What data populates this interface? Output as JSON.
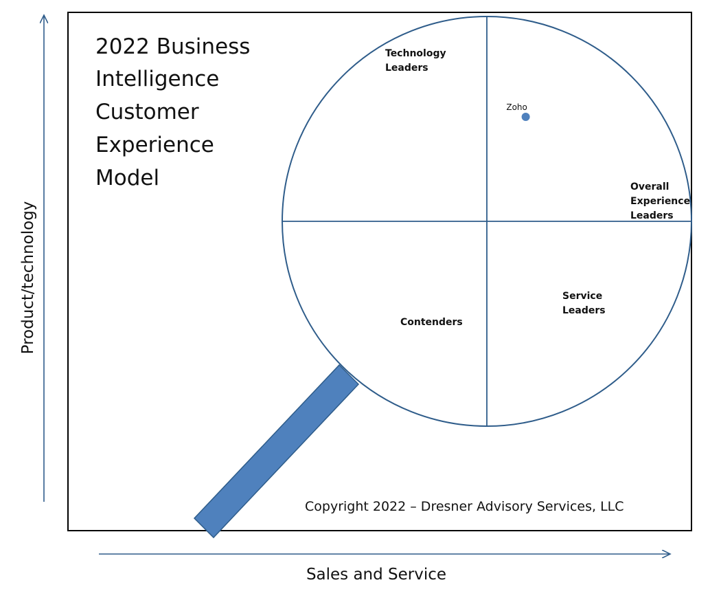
{
  "chart_data": {
    "type": "scatter",
    "title_lines": [
      "2022 Business",
      "Intelligence",
      "Customer",
      "Experience",
      "Model"
    ],
    "xlabel": "Sales and Service",
    "ylabel": "Product/technology",
    "quadrants": {
      "top_left": [
        "Technology",
        "Leaders"
      ],
      "right": [
        "Overall",
        "Experience",
        "Leaders"
      ],
      "bottom_right": [
        "Service",
        "Leaders"
      ],
      "bottom_left": [
        "Contenders"
      ]
    },
    "points": [
      {
        "label": "Zoho",
        "x": 0.19,
        "y": 0.51
      }
    ],
    "copyright": "Copyright 2022 – Dresner Advisory Services, LLC",
    "colors": {
      "accent": "#2e5c8a",
      "handle_fill": "#4f81bd",
      "handle_stroke": "#2e5c8a",
      "point": "#4f81bd",
      "frame": "#000000"
    }
  }
}
